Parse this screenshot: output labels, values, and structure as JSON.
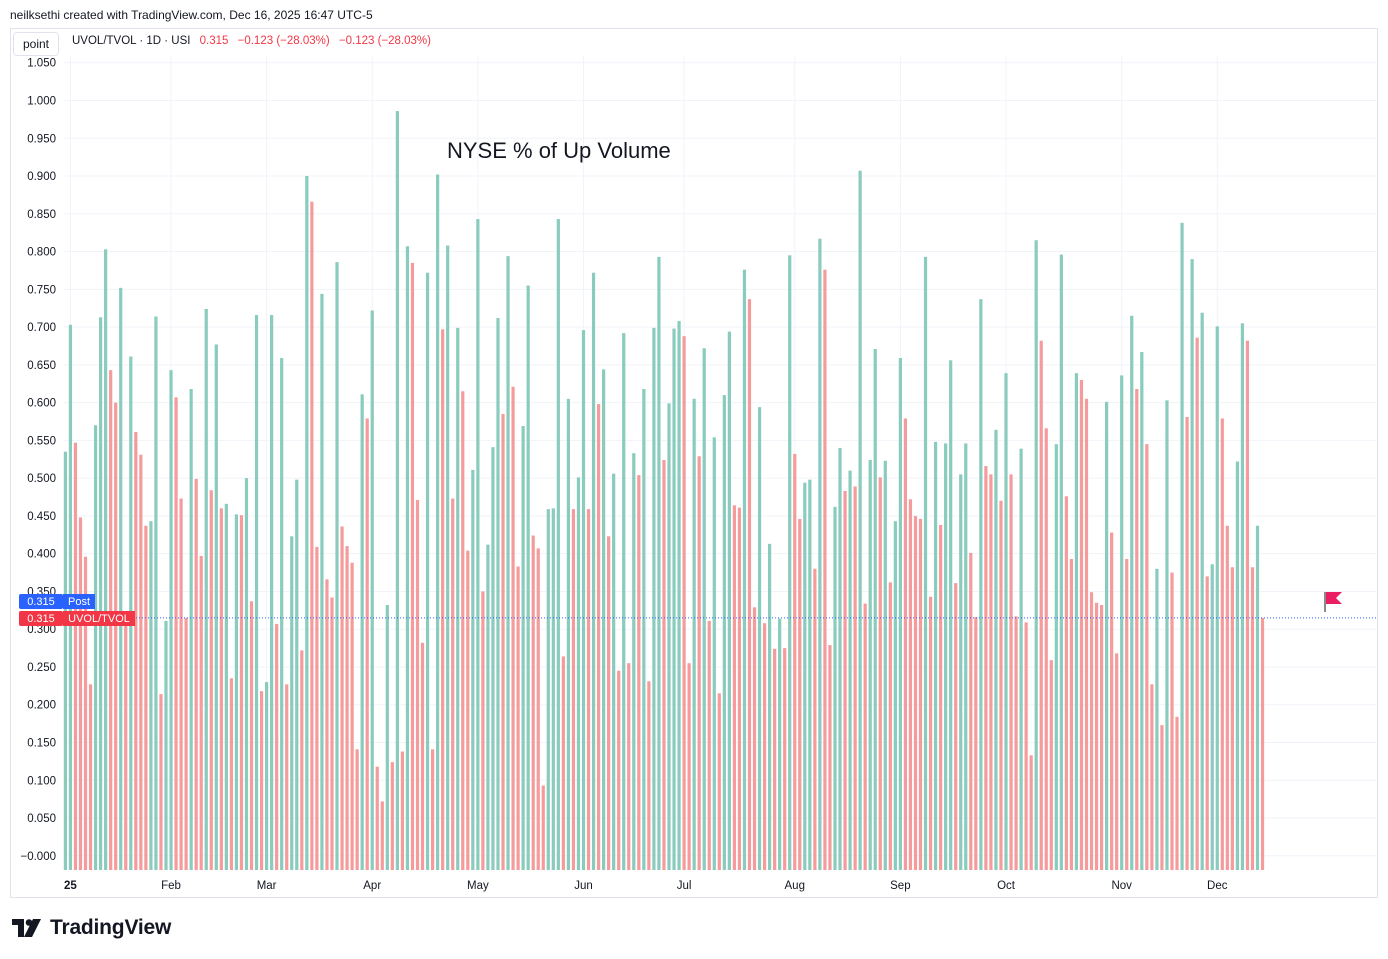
{
  "header": {
    "text": "neilksethi created with TradingView.com, Dec 16, 2025 16:47 UTC-5"
  },
  "toolbar": {
    "point_label": "point"
  },
  "legend": {
    "symbol": "UVOL/TVOL · 1D · USI",
    "value": "0.315",
    "change1": "−0.123 (−28.03%)",
    "change2": "−0.123 (−28.03%)"
  },
  "annotation": {
    "text": "NYSE % of Up Volume"
  },
  "price_tags": {
    "post": {
      "value": "0.315",
      "label": "Post",
      "color": "#2962ff"
    },
    "main": {
      "value": "0.315",
      "label": "UVOL/TVOL",
      "color": "#f23645"
    }
  },
  "brand": {
    "name": "TradingView"
  },
  "colors": {
    "up": "#89cbbd",
    "down": "#f59b9c",
    "grid": "#f0f3fa",
    "last_line": "#2962ff",
    "flag": "#e91e63"
  },
  "chart_data": {
    "type": "bar",
    "title": "NYSE % of Up Volume",
    "xlabel": "",
    "ylabel": "",
    "ylim": [
      -0.015,
      1.055
    ],
    "y_ticks": [
      "1.050",
      "1.000",
      "0.950",
      "0.900",
      "0.850",
      "0.800",
      "0.750",
      "0.700",
      "0.650",
      "0.600",
      "0.550",
      "0.500",
      "0.450",
      "0.400",
      "0.350",
      "0.300",
      "0.250",
      "0.200",
      "0.150",
      "0.100",
      "0.050",
      "−0.000"
    ],
    "x_labels": [
      {
        "label": "25",
        "index": 1
      },
      {
        "label": "Feb",
        "index": 21
      },
      {
        "label": "Mar",
        "index": 40
      },
      {
        "label": "Apr",
        "index": 61
      },
      {
        "label": "May",
        "index": 82
      },
      {
        "label": "Jun",
        "index": 103
      },
      {
        "label": "Jul",
        "index": 123
      },
      {
        "label": "Aug",
        "index": 145
      },
      {
        "label": "Sep",
        "index": 166
      },
      {
        "label": "Oct",
        "index": 187
      },
      {
        "label": "Nov",
        "index": 210
      },
      {
        "label": "Dec",
        "index": 229
      }
    ],
    "grid": true,
    "last_value": 0.315,
    "series": [
      {
        "values": [
          0.535,
          0.703,
          0.547,
          0.448,
          0.396,
          0.227,
          0.57,
          0.713,
          0.803,
          0.643,
          0.6,
          0.752,
          0.32,
          0.661,
          0.561,
          0.531,
          0.437,
          0.443,
          0.714,
          0.214,
          0.311,
          0.643,
          0.607,
          0.473,
          0.315,
          0.618,
          0.499,
          0.397,
          0.724,
          0.484,
          0.677,
          0.46,
          0.466,
          0.235,
          0.452,
          0.451,
          0.5,
          0.337,
          0.716,
          0.218,
          0.23,
          0.716,
          0.307,
          0.659,
          0.227,
          0.423,
          0.498,
          0.272,
          0.9,
          0.866,
          0.409,
          0.744,
          0.366,
          0.342,
          0.786,
          0.436,
          0.41,
          0.388,
          0.141,
          0.611,
          0.579,
          0.722,
          0.118,
          0.072,
          0.332,
          0.124,
          0.986,
          0.138,
          0.807,
          0.785,
          0.471,
          0.282,
          0.772,
          0.141,
          0.902,
          0.697,
          0.808,
          0.473,
          0.699,
          0.615,
          0.404,
          0.511,
          0.843,
          0.35,
          0.412,
          0.541,
          0.712,
          0.585,
          0.794,
          0.621,
          0.383,
          0.569,
          0.755,
          0.424,
          0.407,
          0.093,
          0.459,
          0.46,
          0.843,
          0.264,
          0.605,
          0.459,
          0.501,
          0.696,
          0.459,
          0.772,
          0.598,
          0.644,
          0.423,
          0.506,
          0.245,
          0.692,
          0.255,
          0.533,
          0.504,
          0.618,
          0.231,
          0.699,
          0.793,
          0.524,
          0.599,
          0.698,
          0.708,
          0.688,
          0.255,
          0.605,
          0.529,
          0.672,
          0.311,
          0.554,
          0.215,
          0.61,
          0.694,
          0.464,
          0.461,
          0.776,
          0.737,
          0.329,
          0.594,
          0.308,
          0.413,
          0.274,
          0.314,
          0.275,
          0.795,
          0.532,
          0.446,
          0.494,
          0.498,
          0.38,
          0.817,
          0.776,
          0.279,
          0.462,
          0.54,
          0.483,
          0.51,
          0.489,
          0.907,
          0.334,
          0.524,
          0.671,
          0.501,
          0.523,
          0.362,
          0.443,
          0.659,
          0.579,
          0.472,
          0.45,
          0.446,
          0.793,
          0.343,
          0.548,
          0.438,
          0.546,
          0.656,
          0.361,
          0.505,
          0.546,
          0.401,
          0.316,
          0.737,
          0.516,
          0.505,
          0.564,
          0.47,
          0.639,
          0.505,
          0.317,
          0.539,
          0.309,
          0.133,
          0.815,
          0.682,
          0.566,
          0.259,
          0.545,
          0.796,
          0.476,
          0.393,
          0.639,
          0.63,
          0.605,
          0.349,
          0.335,
          0.332,
          0.601,
          0.428,
          0.268,
          0.636,
          0.393,
          0.715,
          0.618,
          0.667,
          0.545,
          0.227,
          0.38,
          0.173,
          0.603,
          0.375,
          0.184,
          0.838,
          0.581,
          0.79,
          0.686,
          0.719,
          0.37,
          0.386,
          0.701,
          0.579,
          0.437,
          0.382,
          0.522,
          0.705,
          0.682,
          0.382,
          0.437,
          0.315
        ]
      }
    ]
  }
}
